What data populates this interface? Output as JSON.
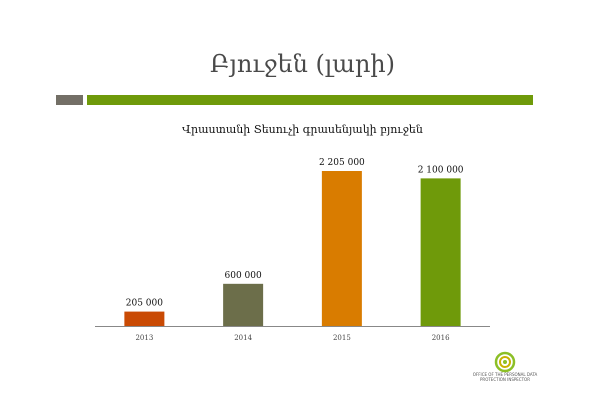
{
  "slide": {
    "title": "Բյուջեն (լարի)"
  },
  "logo": {
    "line1": "OFFICE OF THE PERSONAL DATA",
    "line2": "PROTECTION INSPECTOR"
  },
  "colors": {
    "rule_gray": "#736f66",
    "rule_green": "#6f9a0a",
    "axis": "#888888"
  },
  "chart_data": {
    "type": "bar",
    "title": "Վրաստանի Տեսուչի գրասենյակի բյուջեն",
    "categories": [
      "2013",
      "2014",
      "2015",
      "2016"
    ],
    "values": [
      205000,
      600000,
      2205000,
      2100000
    ],
    "data_labels": [
      "205 000",
      "600 000",
      "2 205 000",
      "2 100 000"
    ],
    "colors": [
      "#c94a04",
      "#6c6e4a",
      "#d97c00",
      "#6f9a0a"
    ],
    "xlabel": "",
    "ylabel": "",
    "ylim": [
      0,
      2205000
    ],
    "grid": false,
    "legend": "none"
  }
}
